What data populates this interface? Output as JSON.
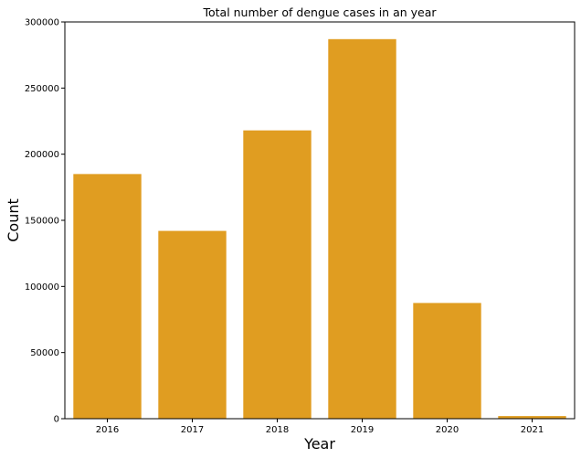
{
  "chart_data": {
    "type": "bar",
    "title": "Total number of dengue cases in an year",
    "xlabel": "Year",
    "ylabel": "Count",
    "categories": [
      "2016",
      "2017",
      "2018",
      "2019",
      "2020",
      "2021"
    ],
    "values": [
      185000,
      142000,
      218000,
      287000,
      87500,
      2000
    ],
    "ylim": [
      0,
      300000
    ],
    "yticks": [
      0,
      50000,
      100000,
      150000,
      200000,
      250000,
      300000
    ],
    "ytick_labels": [
      "0",
      "50000",
      "100000",
      "150000",
      "200000",
      "250000",
      "300000"
    ],
    "bar_color": "#e09d21",
    "grid": false,
    "legend": "none"
  }
}
